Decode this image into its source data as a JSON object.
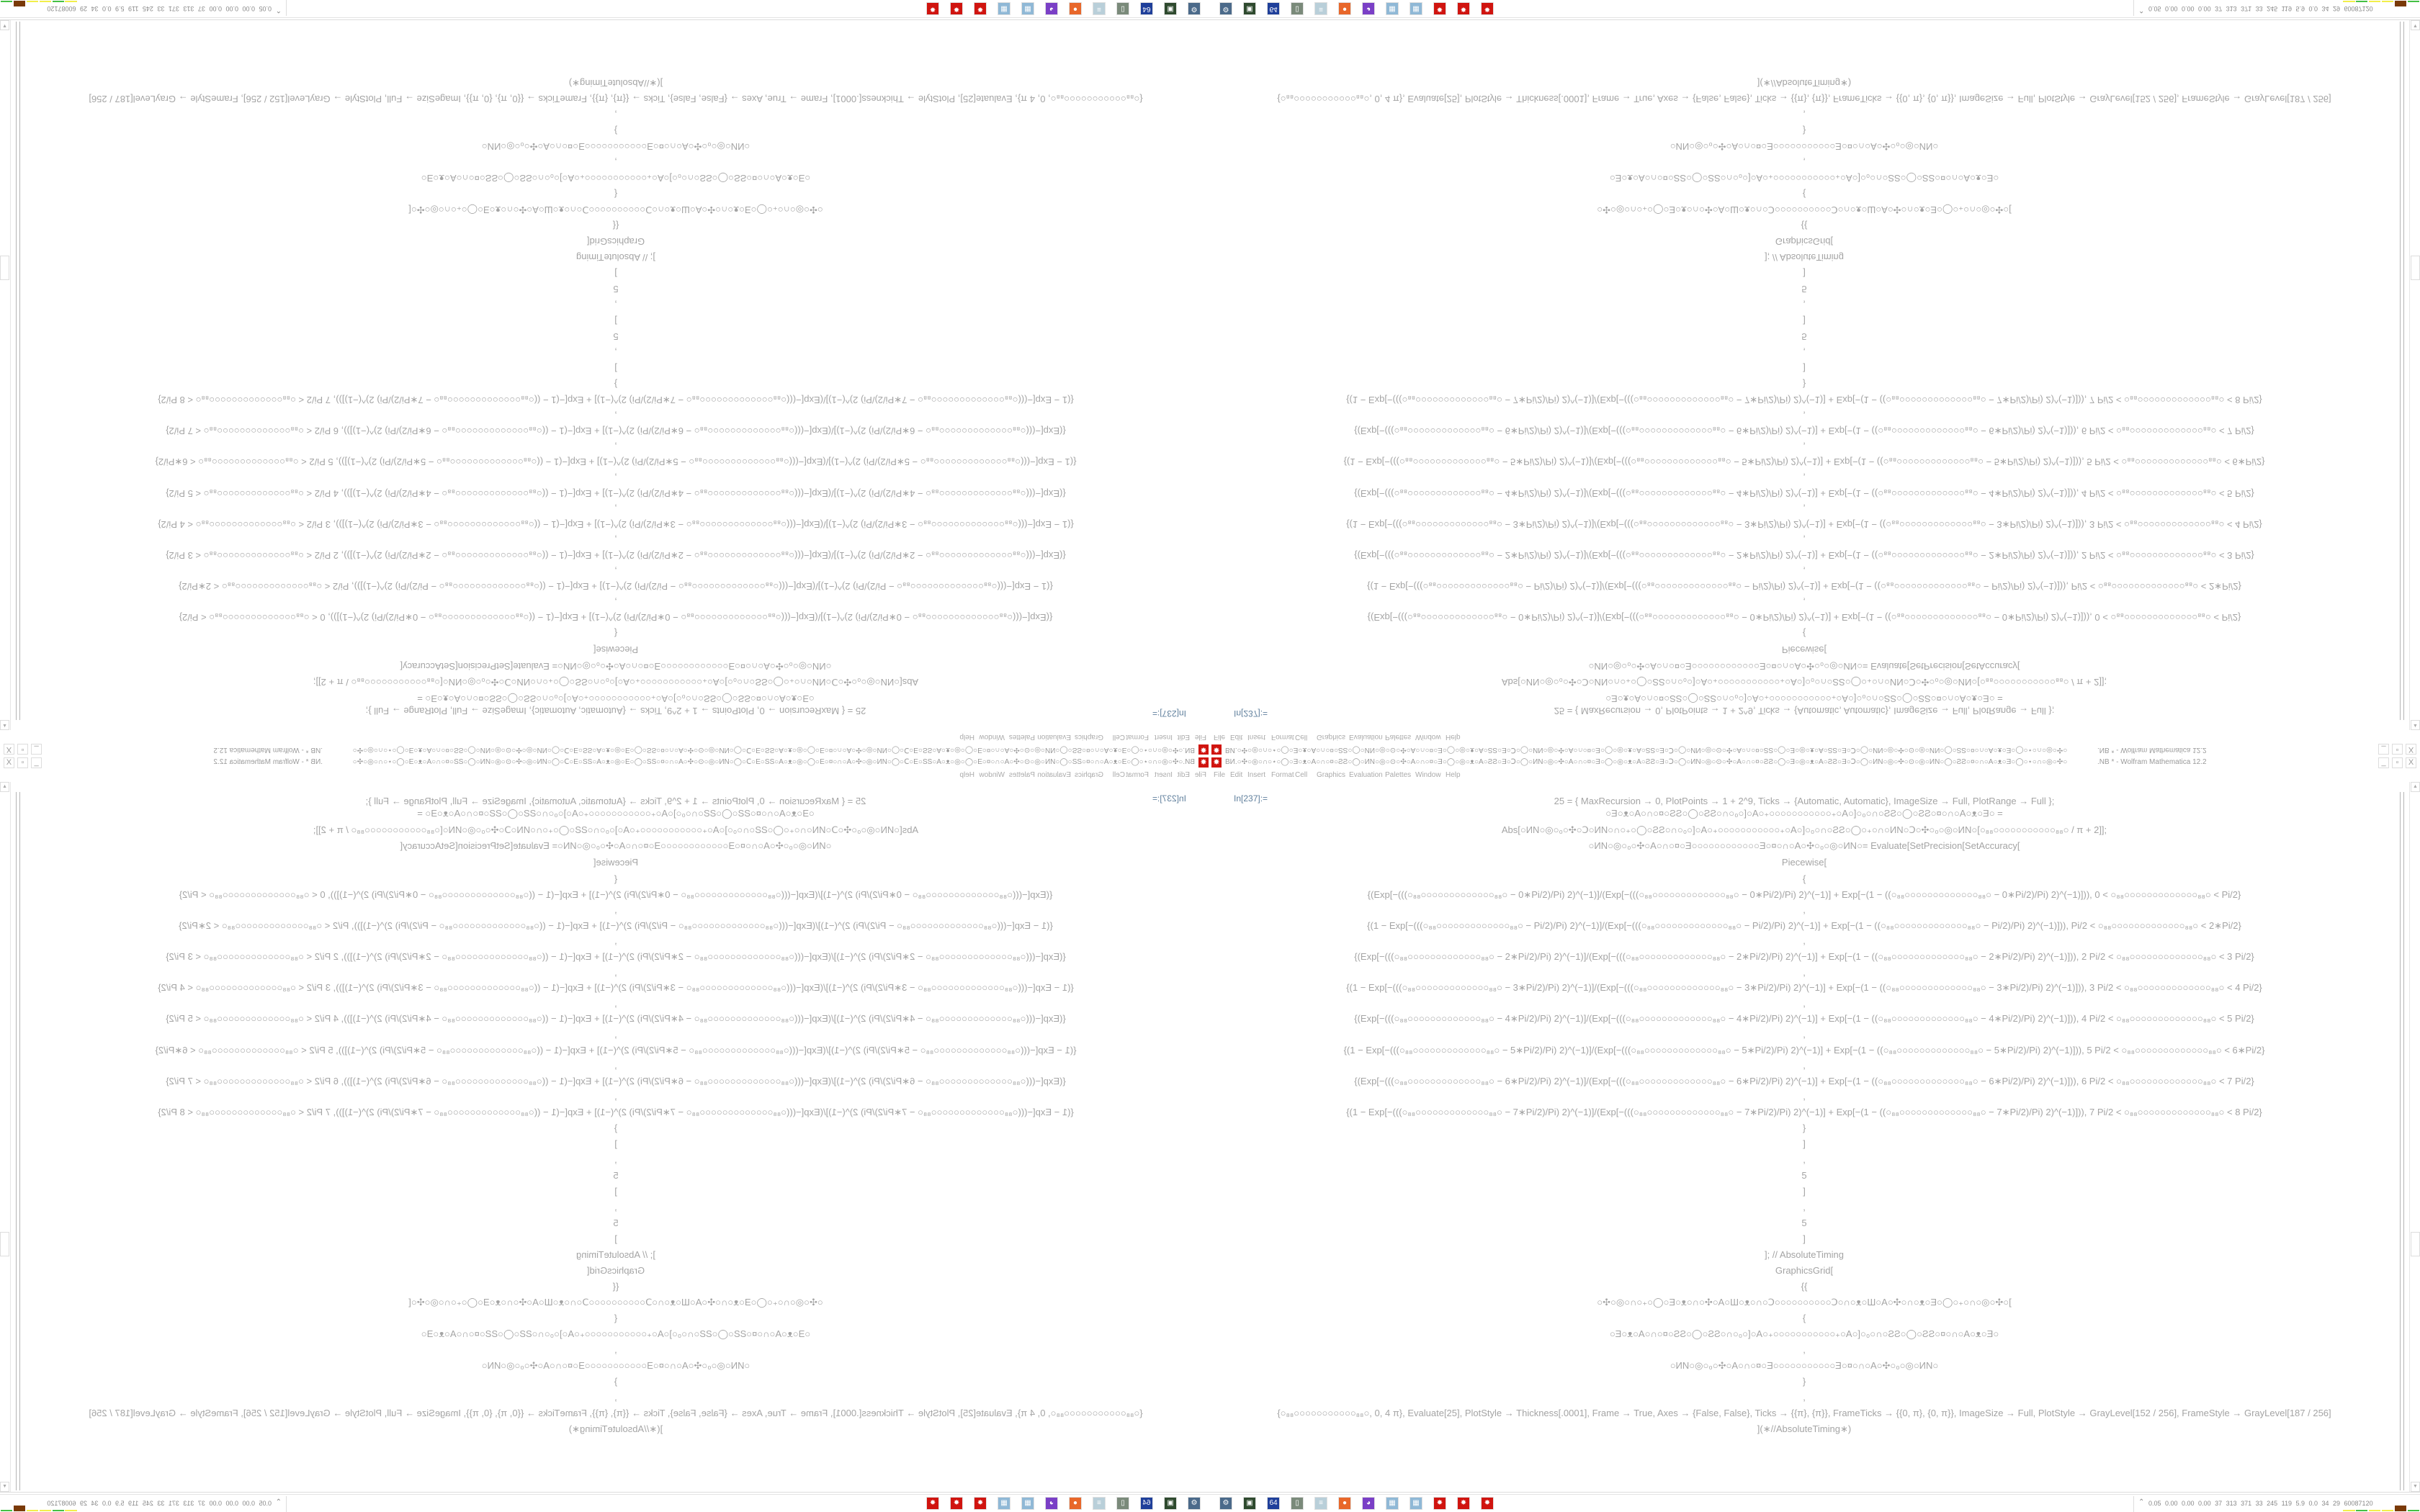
{
  "window": {
    "title_prefix": "BИ.○✣○◎○∩○⋆○◯○Ǝ○ᴥ○A○∩○¤○ƧƧ○◯○ИN○◎○⊙○✣○A○∩○¤○Ǝ○◯○◎○ᴥ○A○ƧƧ○Ǝ○Ↄ○◯○ИN○◎○✣○A○∩○¤○Ǝ○◯○◎○ᴥ○A○ƧƧ○Ǝ○Ↄ○◯○ИN○◎○⊙○✣○A○∩○¤○ƧƧ○◯○Ǝ○◎○ᴥ○A○ƧƧ○Ǝ○Ↄ○◯○ИN○◎○✣○⊙○◎○ИN○◯○ƧƧ○¤○∩○A○ᴥ○Ǝ○◯○⋆○∩○◎○✣○",
    "title_suffix": ".NB * - Wolfram Mathematica 12.2",
    "minimize": "_",
    "restore": "▫",
    "close": "X",
    "app_icon": "mathematica-icon"
  },
  "menu": [
    "File",
    "Edit",
    "Insert",
    "Format",
    "Cell",
    "Graphics",
    "Evaluation",
    "Palettes",
    "Window",
    "Help"
  ],
  "cell": {
    "label": "In[237]:=",
    "lines": [
      "25 = {  MaxRecursion → 0, PlotPoints → 1 + 2^9, Ticks → {Automatic, Automatic}, ImageSize → Full, PlotRange → Full  };",
      "○Ǝ○ᴥ○A○∩○¤○ƧƧ○◯○ƧƧ○∩○₀○]○A○₊○○○○○○○○○○○₊○A○]○₀○∩○ƧƧ○◯○ƧƧ○¤○∩○A○ᴥ○Ǝ○   =",
      "Abs[○ИN○◎○₀○✣○Ↄ○ИN○∩○₊○◯○ƧƧ○∩○₀○]○A○₊○○○○○○○○○○○₊○A○]○₀○∩○ƧƧ○◯○₊○∩○ИN○Ↄ○✣○₀○◎○ИN○[○₈₈○○○○○○○○○○○₈₈○ / π + 2]];",
      "○ИN○◎○₀○✣○A○∩○¤○Ǝ○○○○○○○○○○○○Ǝ○¤○∩○A○✣○₀○◎○ИN○= Evaluate[SetPrecision[SetAccuracy[",
      "Piecewise[",
      "{",
      "{(Exp[−(((○₈₈○○○○○○○○○○○○○₈₈○ − 0∗Pi/2)/Pi) 2)^(−1)]/(Exp[−(((○₈₈○○○○○○○○○○○○○₈₈○ − 0∗Pi/2)/Pi) 2)^(−1)] + Exp[−(1 − ((○₈₈○○○○○○○○○○○○○₈₈○ − 0∗Pi/2)/Pi) 2)^(−1)])), 0 < ○₈₈○○○○○○○○○○○○○₈₈○ < Pi/2}",
      ",",
      "{(1 − Exp[−(((○₈₈○○○○○○○○○○○○○₈₈○ − Pi/2)/Pi) 2)^(−1)]/(Exp[−(((○₈₈○○○○○○○○○○○○○₈₈○ − Pi/2)/Pi) 2)^(−1)] + Exp[−(1 − ((○₈₈○○○○○○○○○○○○○₈₈○ − Pi/2)/Pi) 2)^(−1)])), Pi/2 < ○₈₈○○○○○○○○○○○○○₈₈○ < 2∗Pi/2}",
      ",",
      "{(Exp[−(((○₈₈○○○○○○○○○○○○○₈₈○ − 2∗Pi/2)/Pi) 2)^(−1)]/(Exp[−(((○₈₈○○○○○○○○○○○○○₈₈○ − 2∗Pi/2)/Pi) 2)^(−1)] + Exp[−(1 − ((○₈₈○○○○○○○○○○○○○₈₈○ − 2∗Pi/2)/Pi) 2)^(−1)])), 2 Pi/2 < ○₈₈○○○○○○○○○○○○○₈₈○ < 3 Pi/2}",
      ",",
      "{(1 − Exp[−(((○₈₈○○○○○○○○○○○○○₈₈○ − 3∗Pi/2)/Pi) 2)^(−1)]/(Exp[−(((○₈₈○○○○○○○○○○○○○₈₈○ − 3∗Pi/2)/Pi) 2)^(−1)] + Exp[−(1 − ((○₈₈○○○○○○○○○○○○○₈₈○ − 3∗Pi/2)/Pi) 2)^(−1)])), 3 Pi/2 < ○₈₈○○○○○○○○○○○○○₈₈○ < 4 Pi/2}",
      ",",
      "{(Exp[−(((○₈₈○○○○○○○○○○○○○₈₈○ − 4∗Pi/2)/Pi) 2)^(−1)]/(Exp[−(((○₈₈○○○○○○○○○○○○○₈₈○ − 4∗Pi/2)/Pi) 2)^(−1)] + Exp[−(1 − ((○₈₈○○○○○○○○○○○○○₈₈○ − 4∗Pi/2)/Pi) 2)^(−1)])), 4 Pi/2 < ○₈₈○○○○○○○○○○○○○₈₈○ < 5 Pi/2}",
      ",",
      "{(1 − Exp[−(((○₈₈○○○○○○○○○○○○○₈₈○ − 5∗Pi/2)/Pi) 2)^(−1)]/(Exp[−(((○₈₈○○○○○○○○○○○○○₈₈○ − 5∗Pi/2)/Pi) 2)^(−1)] + Exp[−(1 − ((○₈₈○○○○○○○○○○○○○₈₈○ − 5∗Pi/2)/Pi) 2)^(−1)])), 5 Pi/2 < ○₈₈○○○○○○○○○○○○○₈₈○ < 6∗Pi/2}",
      ",",
      "{(Exp[−(((○₈₈○○○○○○○○○○○○○₈₈○ − 6∗Pi/2)/Pi) 2)^(−1)]/(Exp[−(((○₈₈○○○○○○○○○○○○○₈₈○ − 6∗Pi/2)/Pi) 2)^(−1)] + Exp[−(1 − ((○₈₈○○○○○○○○○○○○○₈₈○ − 6∗Pi/2)/Pi) 2)^(−1)])), 6 Pi/2 < ○₈₈○○○○○○○○○○○○○₈₈○ < 7 Pi/2}",
      ",",
      "{(1 − Exp[−(((○₈₈○○○○○○○○○○○○○₈₈○ − 7∗Pi/2)/Pi) 2)^(−1)]/(Exp[−(((○₈₈○○○○○○○○○○○○○₈₈○ − 7∗Pi/2)/Pi) 2)^(−1)] + Exp[−(1 − ((○₈₈○○○○○○○○○○○○○₈₈○ − 7∗Pi/2)/Pi) 2)^(−1)])), 7 Pi/2 < ○₈₈○○○○○○○○○○○○○₈₈○ < 8 Pi/2}",
      "}",
      "]",
      ",",
      "5",
      "]",
      ",",
      "5",
      "]",
      "]; // AbsoluteTiming",
      "GraphicsGrid[",
      "{{",
      "○✣○◎○∩○₊○◯○Ǝ○ᴥ○∩○✣○A○Ш○ᴥ○∩○Ↄ○○○○○○○○○○Ↄ○∩○ᴥ○Ш○A○✣○∩○ᴥ○Ǝ○◯○₊○∩○◎○✣○[",
      "{",
      "○Ǝ○ᴥ○A○∩○¤○ƧƧ○◯○ƧƧ○∩○₀○]○A○₊○○○○○○○○○○○₊○A○]○₀○∩○ƧƧ○◯○ƧƧ○¤○∩○A○ᴥ○Ǝ○",
      ",",
      "○ИN○◎○₀○✣○A○∩○¤○Ǝ○○○○○○○○○○○Ǝ○¤○∩○A○✣○₀○◎○ИN○",
      "}",
      ",",
      "{○₈₈○○○○○○○○○○○₈₈○, 0, 4 π}, Evaluate[25], PlotStyle → Thickness[.0001], Frame → True, Axes → {False, False}, Ticks → {{π}, {π}}, FrameTicks → {{0, π}, {0, π}}, ImageSize → Full, PlotStyle → GrayLevel[152 / 256], FrameStyle → GrayLevel[187 / 256]",
      "](∗//AbsoluteTiming∗)"
    ]
  },
  "taskbar": {
    "icons": [
      {
        "name": "system-monitor-icon",
        "color": "#4b6a8a",
        "glyph": "⚙"
      },
      {
        "name": "terminal-icon",
        "color": "#2e4a2e",
        "glyph": "▣"
      },
      {
        "name": "floppy-64-icon",
        "color": "#1f3f9a",
        "glyph": "64"
      },
      {
        "name": "monitor-icon",
        "color": "#7a8a7a",
        "glyph": "▯"
      },
      {
        "name": "notepad-icon",
        "color": "#b9cfd9",
        "glyph": "≡"
      },
      {
        "name": "firefox-icon",
        "color": "#e8672a",
        "glyph": "●"
      },
      {
        "name": "purple-ghost-icon",
        "color": "#7a3fc6",
        "glyph": "◕"
      },
      {
        "name": "calculator-icon",
        "color": "#8fb8d6",
        "glyph": "▦"
      },
      {
        "name": "calculator-icon",
        "color": "#8fb8d6",
        "glyph": "▦"
      },
      {
        "name": "mathematica-icon",
        "color": "#d0140f",
        "glyph": "✸"
      },
      {
        "name": "mathematica-icon",
        "color": "#d0140f",
        "glyph": "✸"
      },
      {
        "name": "mathematica-icon",
        "color": "#d0140f",
        "glyph": "✸"
      }
    ],
    "tray_chevron": "⌃",
    "tray_stats": "0.05 0.00 0.00 0.00 37 313 371 33 245 119 5.9 0.0 34 29 60087120",
    "tray_bar_colors": [
      "#f2ef4a",
      "#44c044",
      "#f2ef4a",
      "#f2ef4a",
      "#7a3a08",
      "#44c044"
    ]
  }
}
